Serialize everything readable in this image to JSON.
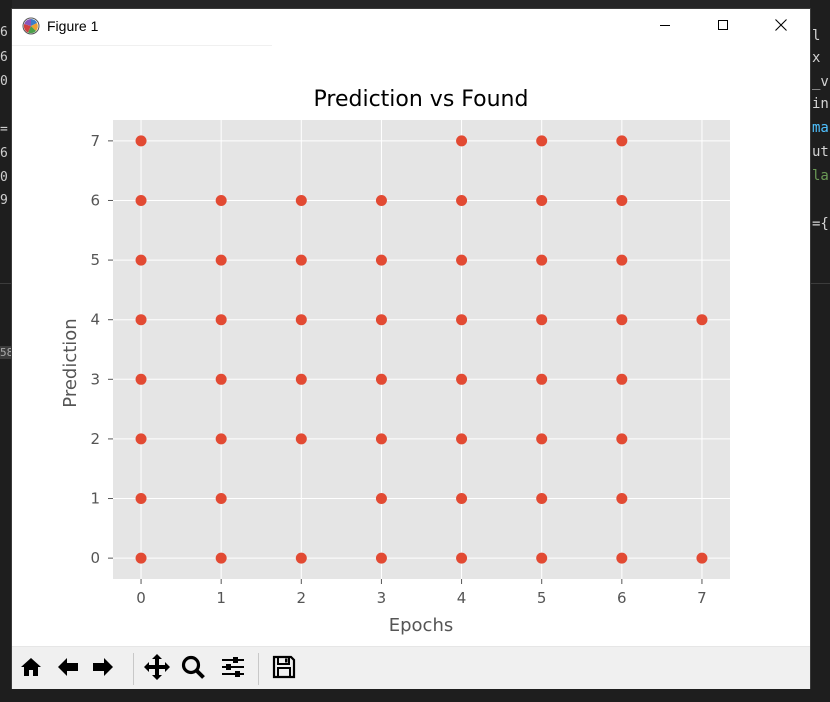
{
  "window": {
    "title": "Figure 1",
    "icon": "matplotlib-logo-icon",
    "controls": [
      "minimize-icon",
      "maximize-icon",
      "close-icon"
    ]
  },
  "background": {
    "left_fragments": [
      "6",
      "6",
      "0",
      "=",
      "6",
      "0",
      "9",
      "58"
    ],
    "right_fragments": [
      "l",
      "x",
      "_v",
      "in",
      "ma",
      "ut",
      "la",
      "={"
    ]
  },
  "toolbar": {
    "buttons": [
      {
        "name": "home",
        "icon": "home-icon"
      },
      {
        "name": "back",
        "icon": "arrow-left-icon"
      },
      {
        "name": "forward",
        "icon": "arrow-right-icon"
      },
      {
        "name": "pan",
        "icon": "move-icon"
      },
      {
        "name": "zoom",
        "icon": "magnifier-icon"
      },
      {
        "name": "configure-subplots",
        "icon": "sliders-icon"
      },
      {
        "name": "save",
        "icon": "floppy-disk-icon"
      }
    ]
  },
  "colors": {
    "axes_background": "#e5e5e5",
    "grid": "#ffffff",
    "marker": "#e24a33",
    "text": "#555555",
    "title": "#000000"
  },
  "chart_data": {
    "type": "scatter",
    "title": "Prediction vs Found",
    "xlabel": "Epochs",
    "ylabel": "Prediction",
    "xlim": [
      -0.35,
      7.35
    ],
    "ylim": [
      -0.35,
      7.35
    ],
    "xticks": [
      "0",
      "1",
      "2",
      "3",
      "4",
      "5",
      "6",
      "7"
    ],
    "yticks": [
      "0",
      "1",
      "2",
      "3",
      "4",
      "5",
      "6",
      "7"
    ],
    "grid": true,
    "style": "ggplot",
    "points": [
      [
        0,
        0
      ],
      [
        0,
        1
      ],
      [
        0,
        2
      ],
      [
        0,
        3
      ],
      [
        0,
        4
      ],
      [
        0,
        5
      ],
      [
        0,
        6
      ],
      [
        0,
        7
      ],
      [
        1,
        0
      ],
      [
        1,
        1
      ],
      [
        1,
        2
      ],
      [
        1,
        3
      ],
      [
        1,
        4
      ],
      [
        1,
        5
      ],
      [
        1,
        6
      ],
      [
        2,
        0
      ],
      [
        2,
        2
      ],
      [
        2,
        3
      ],
      [
        2,
        4
      ],
      [
        2,
        5
      ],
      [
        2,
        6
      ],
      [
        3,
        0
      ],
      [
        3,
        1
      ],
      [
        3,
        2
      ],
      [
        3,
        3
      ],
      [
        3,
        4
      ],
      [
        3,
        5
      ],
      [
        3,
        6
      ],
      [
        4,
        0
      ],
      [
        4,
        1
      ],
      [
        4,
        2
      ],
      [
        4,
        3
      ],
      [
        4,
        4
      ],
      [
        4,
        5
      ],
      [
        4,
        6
      ],
      [
        4,
        7
      ],
      [
        5,
        0
      ],
      [
        5,
        1
      ],
      [
        5,
        2
      ],
      [
        5,
        3
      ],
      [
        5,
        4
      ],
      [
        5,
        5
      ],
      [
        5,
        6
      ],
      [
        5,
        7
      ],
      [
        6,
        0
      ],
      [
        6,
        1
      ],
      [
        6,
        2
      ],
      [
        6,
        3
      ],
      [
        6,
        4
      ],
      [
        6,
        5
      ],
      [
        6,
        6
      ],
      [
        6,
        7
      ],
      [
        7,
        0
      ],
      [
        7,
        4
      ]
    ]
  }
}
